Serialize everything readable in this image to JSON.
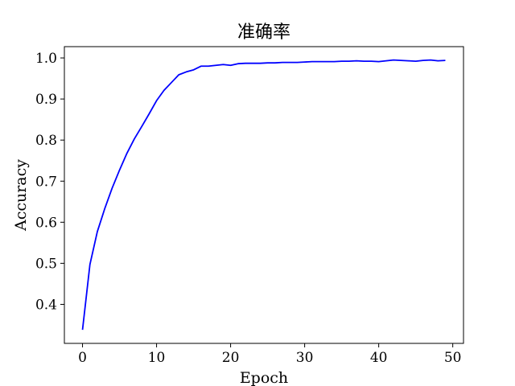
{
  "chart_data": {
    "type": "line",
    "title": "准确率",
    "xlabel": "Epoch",
    "ylabel": "Accuracy",
    "xlim": [
      -2.45,
      51.45
    ],
    "ylim": [
      0.305,
      1.0275
    ],
    "xticks": [
      0,
      10,
      20,
      30,
      40,
      50
    ],
    "xtick_labels": [
      "0",
      "10",
      "20",
      "30",
      "40",
      "50"
    ],
    "yticks": [
      0.4,
      0.5,
      0.6,
      0.7,
      0.8,
      0.9,
      1.0
    ],
    "ytick_labels": [
      "0.4",
      "0.5",
      "0.6",
      "0.7",
      "0.8",
      "0.9",
      "1.0"
    ],
    "grid": false,
    "series": [
      {
        "name": "Accuracy",
        "color": "#0000ff",
        "x": [
          0,
          1,
          2,
          3,
          4,
          5,
          6,
          7,
          8,
          9,
          10,
          11,
          12,
          13,
          14,
          15,
          16,
          17,
          18,
          19,
          20,
          21,
          22,
          23,
          24,
          25,
          26,
          27,
          28,
          29,
          30,
          31,
          32,
          33,
          34,
          35,
          36,
          37,
          38,
          39,
          40,
          41,
          42,
          43,
          44,
          45,
          46,
          47,
          48,
          49
        ],
        "values": [
          0.338,
          0.497,
          0.577,
          0.633,
          0.683,
          0.727,
          0.768,
          0.803,
          0.833,
          0.864,
          0.896,
          0.921,
          0.94,
          0.959,
          0.966,
          0.971,
          0.98,
          0.98,
          0.982,
          0.984,
          0.982,
          0.986,
          0.987,
          0.987,
          0.987,
          0.988,
          0.988,
          0.989,
          0.989,
          0.989,
          0.99,
          0.991,
          0.991,
          0.991,
          0.991,
          0.992,
          0.992,
          0.993,
          0.992,
          0.992,
          0.991,
          0.993,
          0.995,
          0.994,
          0.993,
          0.992,
          0.994,
          0.995,
          0.993,
          0.994
        ]
      }
    ]
  }
}
